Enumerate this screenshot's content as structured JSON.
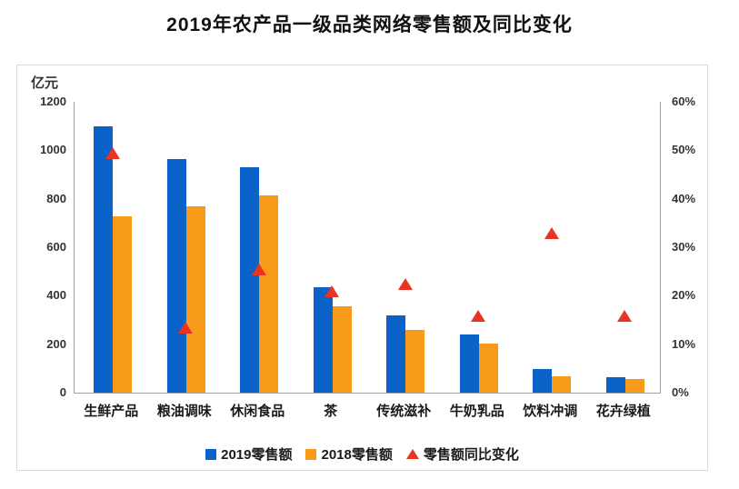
{
  "chart_data": {
    "type": "bar",
    "subtype": "grouped-bars-with-growth-triangle-markers",
    "title": "2019年农产品一级品类网络零售额及同比变化",
    "unit_label": "亿元",
    "categories": [
      "生鲜产品",
      "粮油调味",
      "休闲食品",
      "茶",
      "传统滋补",
      "牛奶乳品",
      "饮料冲调",
      "花卉绿植"
    ],
    "series": [
      {
        "name": "2019零售额",
        "type": "bar",
        "axis": "left",
        "color": "#0b63c9",
        "values": [
          1100,
          965,
          930,
          435,
          318,
          240,
          98,
          65
        ]
      },
      {
        "name": "2018零售额",
        "type": "bar",
        "axis": "left",
        "color": "#f89a1a",
        "values": [
          728,
          770,
          815,
          355,
          258,
          203,
          68,
          56
        ]
      },
      {
        "name": "零售额同比变化",
        "type": "triangle-marker",
        "axis": "right",
        "color": "#e93323",
        "values_percent": [
          49.5,
          13.5,
          25.5,
          21,
          22.5,
          16,
          33,
          16
        ]
      }
    ],
    "left_axis": {
      "label": "亿元",
      "min": 0,
      "max": 1200,
      "ticks": [
        0,
        200,
        400,
        600,
        800,
        1000,
        1200
      ]
    },
    "right_axis": {
      "min": 0,
      "max": 60,
      "ticks": [
        "0%",
        "10%",
        "20%",
        "30%",
        "40%",
        "50%",
        "60%"
      ]
    },
    "grid": false,
    "legend_position": "bottom"
  },
  "colors": {
    "bar_2019": "#0b63c9",
    "bar_2018": "#f89a1a",
    "growth_marker": "#e93323",
    "axis_line": "#a0a0a0",
    "panel_border": "#d9d9d9",
    "text": "#1a1a1a"
  }
}
